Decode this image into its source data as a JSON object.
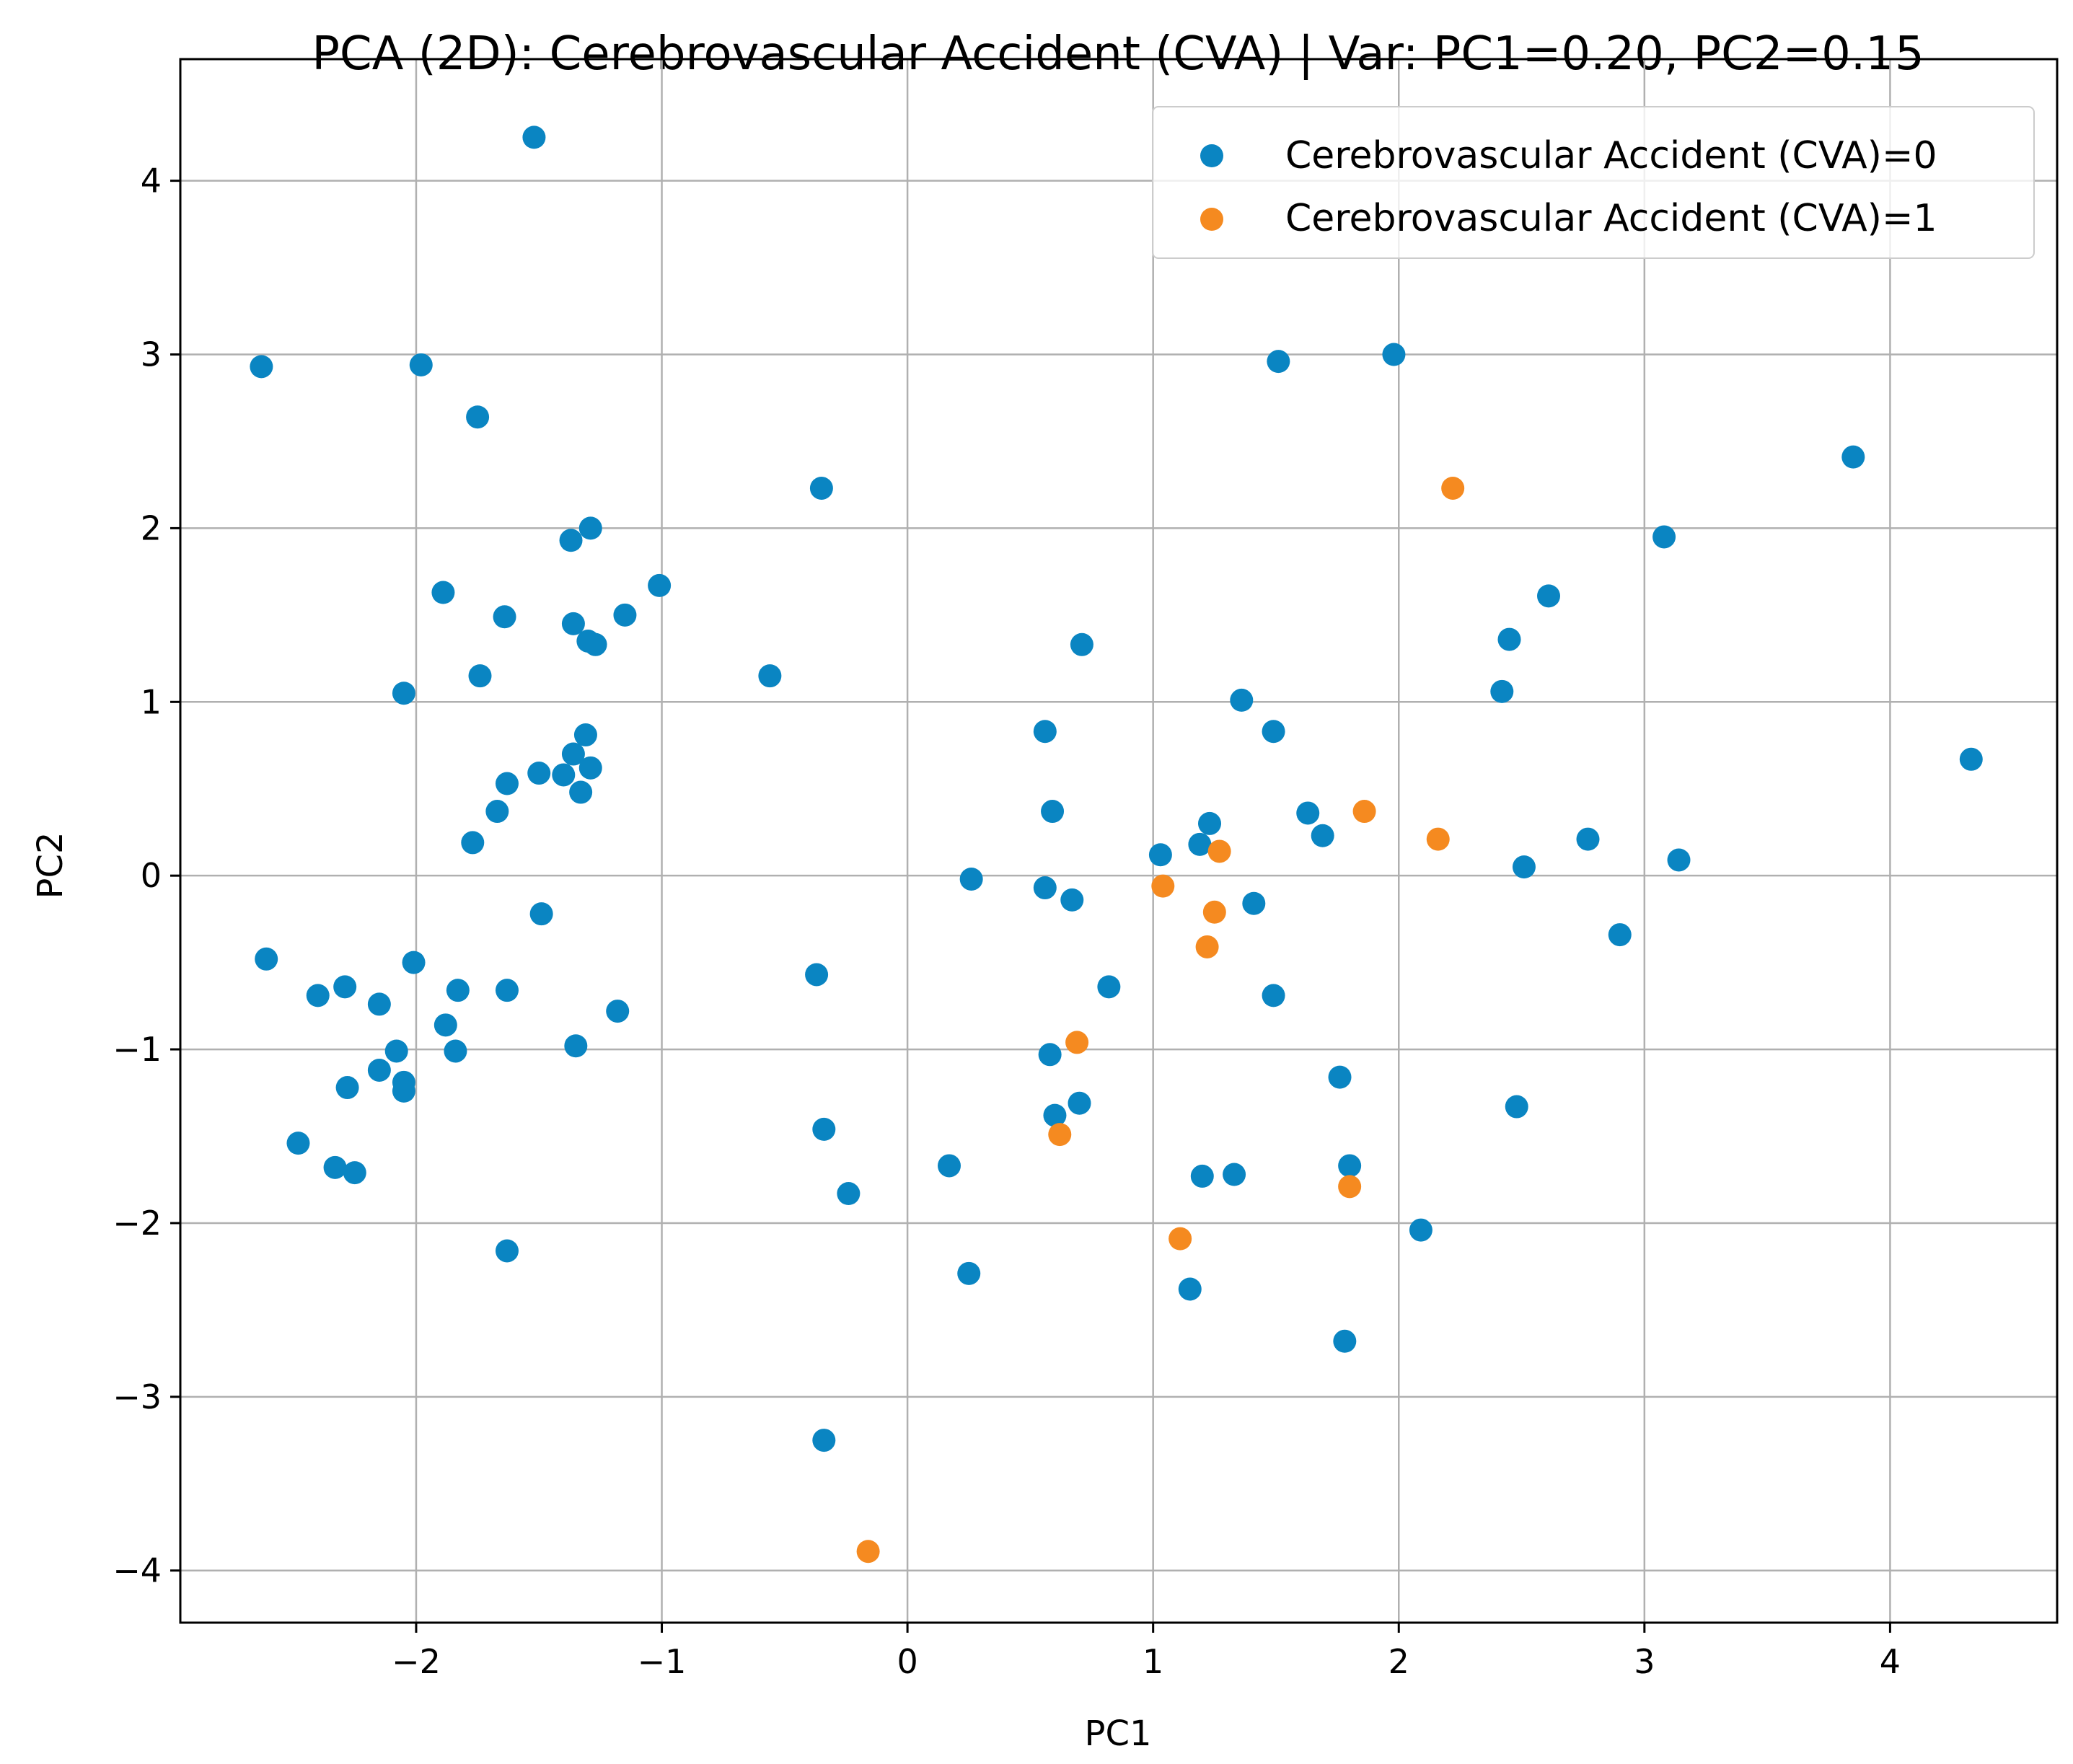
{
  "chart_data": {
    "type": "scatter",
    "title": "PCA (2D): Cerebrovascular Accident (CVA)  |  Var: PC1=0.20, PC2=0.15",
    "xlabel": "PC1",
    "ylabel": "PC2",
    "xlim": [
      -2.96,
      4.68
    ],
    "ylim": [
      -4.3,
      4.7
    ],
    "grid": true,
    "legend_position": "top-right",
    "x_ticks": [
      {
        "value": -2,
        "label": "−2"
      },
      {
        "value": -1,
        "label": "−1"
      },
      {
        "value": 0,
        "label": "0"
      },
      {
        "value": 1,
        "label": "1"
      },
      {
        "value": 2,
        "label": "2"
      },
      {
        "value": 3,
        "label": "3"
      },
      {
        "value": 4,
        "label": "4"
      }
    ],
    "y_ticks": [
      {
        "value": -4,
        "label": "−4"
      },
      {
        "value": -3,
        "label": "−3"
      },
      {
        "value": -2,
        "label": "−2"
      },
      {
        "value": -1,
        "label": "−1"
      },
      {
        "value": 0,
        "label": "0"
      },
      {
        "value": 1,
        "label": "1"
      },
      {
        "value": 2,
        "label": "2"
      },
      {
        "value": 3,
        "label": "3"
      },
      {
        "value": 4,
        "label": "4"
      }
    ],
    "series": [
      {
        "name": "Cerebrovascular Accident (CVA)=0",
        "color": "#0a85c2",
        "points": [
          {
            "x": -1.52,
            "y": 4.25
          },
          {
            "x": -2.63,
            "y": 2.93
          },
          {
            "x": -1.98,
            "y": 2.94
          },
          {
            "x": -1.75,
            "y": 2.64
          },
          {
            "x": -0.35,
            "y": 2.23
          },
          {
            "x": -1.37,
            "y": 1.93
          },
          {
            "x": -1.29,
            "y": 2.0
          },
          {
            "x": -1.01,
            "y": 1.67
          },
          {
            "x": -1.89,
            "y": 1.63
          },
          {
            "x": -1.64,
            "y": 1.49
          },
          {
            "x": -1.36,
            "y": 1.45
          },
          {
            "x": -1.15,
            "y": 1.5
          },
          {
            "x": -1.3,
            "y": 1.35
          },
          {
            "x": -1.27,
            "y": 1.33
          },
          {
            "x": -1.74,
            "y": 1.15
          },
          {
            "x": -0.56,
            "y": 1.15
          },
          {
            "x": -2.05,
            "y": 1.05
          },
          {
            "x": -1.31,
            "y": 0.81
          },
          {
            "x": -1.36,
            "y": 0.7
          },
          {
            "x": -1.5,
            "y": 0.59
          },
          {
            "x": -1.4,
            "y": 0.58
          },
          {
            "x": -1.29,
            "y": 0.62
          },
          {
            "x": -1.63,
            "y": 0.53
          },
          {
            "x": -1.33,
            "y": 0.48
          },
          {
            "x": -1.67,
            "y": 0.37
          },
          {
            "x": -1.77,
            "y": 0.19
          },
          {
            "x": -1.49,
            "y": -0.22
          },
          {
            "x": -2.61,
            "y": -0.48
          },
          {
            "x": -2.01,
            "y": -0.5
          },
          {
            "x": -2.29,
            "y": -0.64
          },
          {
            "x": -2.4,
            "y": -0.69
          },
          {
            "x": -1.83,
            "y": -0.66
          },
          {
            "x": -1.63,
            "y": -0.66
          },
          {
            "x": -2.15,
            "y": -0.74
          },
          {
            "x": -1.18,
            "y": -0.78
          },
          {
            "x": -1.88,
            "y": -0.86
          },
          {
            "x": -1.35,
            "y": -0.98
          },
          {
            "x": -2.08,
            "y": -1.01
          },
          {
            "x": -1.84,
            "y": -1.01
          },
          {
            "x": -2.15,
            "y": -1.12
          },
          {
            "x": -2.05,
            "y": -1.19
          },
          {
            "x": -2.05,
            "y": -1.24
          },
          {
            "x": -2.28,
            "y": -1.22
          },
          {
            "x": -2.48,
            "y": -1.54
          },
          {
            "x": -2.33,
            "y": -1.68
          },
          {
            "x": -2.25,
            "y": -1.71
          },
          {
            "x": -1.63,
            "y": -2.16
          },
          {
            "x": -0.37,
            "y": -0.57
          },
          {
            "x": -0.34,
            "y": -1.46
          },
          {
            "x": -0.24,
            "y": -1.83
          },
          {
            "x": -0.34,
            "y": -3.25
          },
          {
            "x": 0.71,
            "y": 1.33
          },
          {
            "x": 0.56,
            "y": 0.83
          },
          {
            "x": 0.59,
            "y": 0.37
          },
          {
            "x": 0.26,
            "y": -0.02
          },
          {
            "x": 0.56,
            "y": -0.07
          },
          {
            "x": 0.67,
            "y": -0.14
          },
          {
            "x": 0.82,
            "y": -0.64
          },
          {
            "x": 0.58,
            "y": -1.03
          },
          {
            "x": 0.6,
            "y": -1.38
          },
          {
            "x": 0.7,
            "y": -1.31
          },
          {
            "x": 0.17,
            "y": -1.67
          },
          {
            "x": 0.25,
            "y": -2.29
          },
          {
            "x": 1.51,
            "y": 2.96
          },
          {
            "x": 1.98,
            "y": 3.0
          },
          {
            "x": 1.36,
            "y": 1.01
          },
          {
            "x": 1.49,
            "y": 0.83
          },
          {
            "x": 1.23,
            "y": 0.3
          },
          {
            "x": 1.19,
            "y": 0.18
          },
          {
            "x": 1.03,
            "y": 0.12
          },
          {
            "x": 1.63,
            "y": 0.36
          },
          {
            "x": 1.69,
            "y": 0.23
          },
          {
            "x": 1.41,
            "y": -0.16
          },
          {
            "x": 1.49,
            "y": -0.69
          },
          {
            "x": 1.76,
            "y": -1.16
          },
          {
            "x": 1.8,
            "y": -1.67
          },
          {
            "x": 1.2,
            "y": -1.73
          },
          {
            "x": 1.33,
            "y": -1.72
          },
          {
            "x": 1.15,
            "y": -2.38
          },
          {
            "x": 1.78,
            "y": -2.68
          },
          {
            "x": 2.09,
            "y": -2.04
          },
          {
            "x": 2.45,
            "y": 1.36
          },
          {
            "x": 2.61,
            "y": 1.61
          },
          {
            "x": 2.42,
            "y": 1.06
          },
          {
            "x": 3.08,
            "y": 1.95
          },
          {
            "x": 3.85,
            "y": 2.41
          },
          {
            "x": 4.33,
            "y": 0.67
          },
          {
            "x": 2.77,
            "y": 0.21
          },
          {
            "x": 2.51,
            "y": 0.05
          },
          {
            "x": 3.14,
            "y": 0.09
          },
          {
            "x": 2.9,
            "y": -0.34
          },
          {
            "x": 2.48,
            "y": -1.33
          }
        ]
      },
      {
        "name": "Cerebrovascular Accident (CVA)=1",
        "color": "#f58a20",
        "points": [
          {
            "x": 2.22,
            "y": 2.23
          },
          {
            "x": 1.86,
            "y": 0.37
          },
          {
            "x": 2.16,
            "y": 0.21
          },
          {
            "x": 1.27,
            "y": 0.14
          },
          {
            "x": 1.04,
            "y": -0.06
          },
          {
            "x": 1.25,
            "y": -0.21
          },
          {
            "x": 1.22,
            "y": -0.41
          },
          {
            "x": 0.69,
            "y": -0.96
          },
          {
            "x": 0.62,
            "y": -1.49
          },
          {
            "x": 1.8,
            "y": -1.79
          },
          {
            "x": 1.11,
            "y": -2.09
          },
          {
            "x": -0.16,
            "y": -3.89
          }
        ]
      }
    ]
  }
}
